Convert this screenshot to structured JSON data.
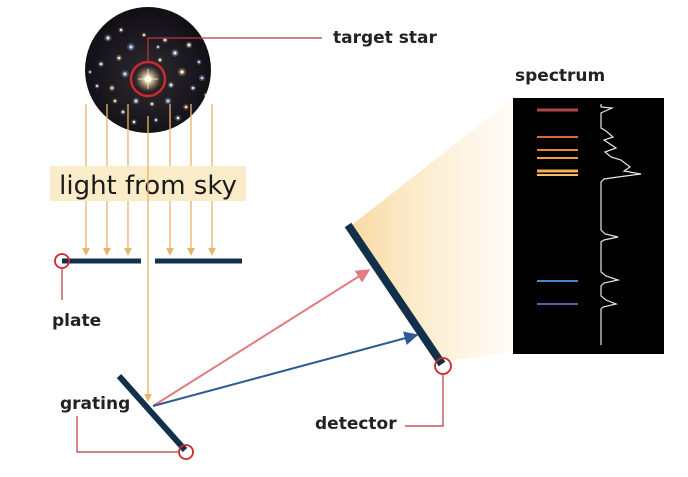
{
  "diagram": {
    "labels": {
      "target_star": "target star",
      "light_from_sky": "light from sky",
      "plate": "plate",
      "grating": "grating",
      "detector": "detector",
      "spectrum": "spectrum"
    }
  },
  "colors": {
    "light_ray": "#e8b468",
    "callout_line": "#b83a3a",
    "callout_circle": "#cc2a2a",
    "component": "#13304a",
    "ray_red": "#e07c82",
    "ray_blue": "#2f5a94",
    "sky_label_bg": "#fbecc9",
    "spectrum_bg": "#000000"
  },
  "spectrum": {
    "lines": [
      {
        "color": "#b2444b"
      },
      {
        "color": "#d7653d"
      },
      {
        "color": "#e0893c"
      },
      {
        "color": "#ee9d44"
      },
      {
        "color": "#f4ad55"
      },
      {
        "color": "#f6bb66"
      },
      {
        "color": "#4a86c7"
      },
      {
        "color": "#5a5fa6"
      }
    ]
  }
}
